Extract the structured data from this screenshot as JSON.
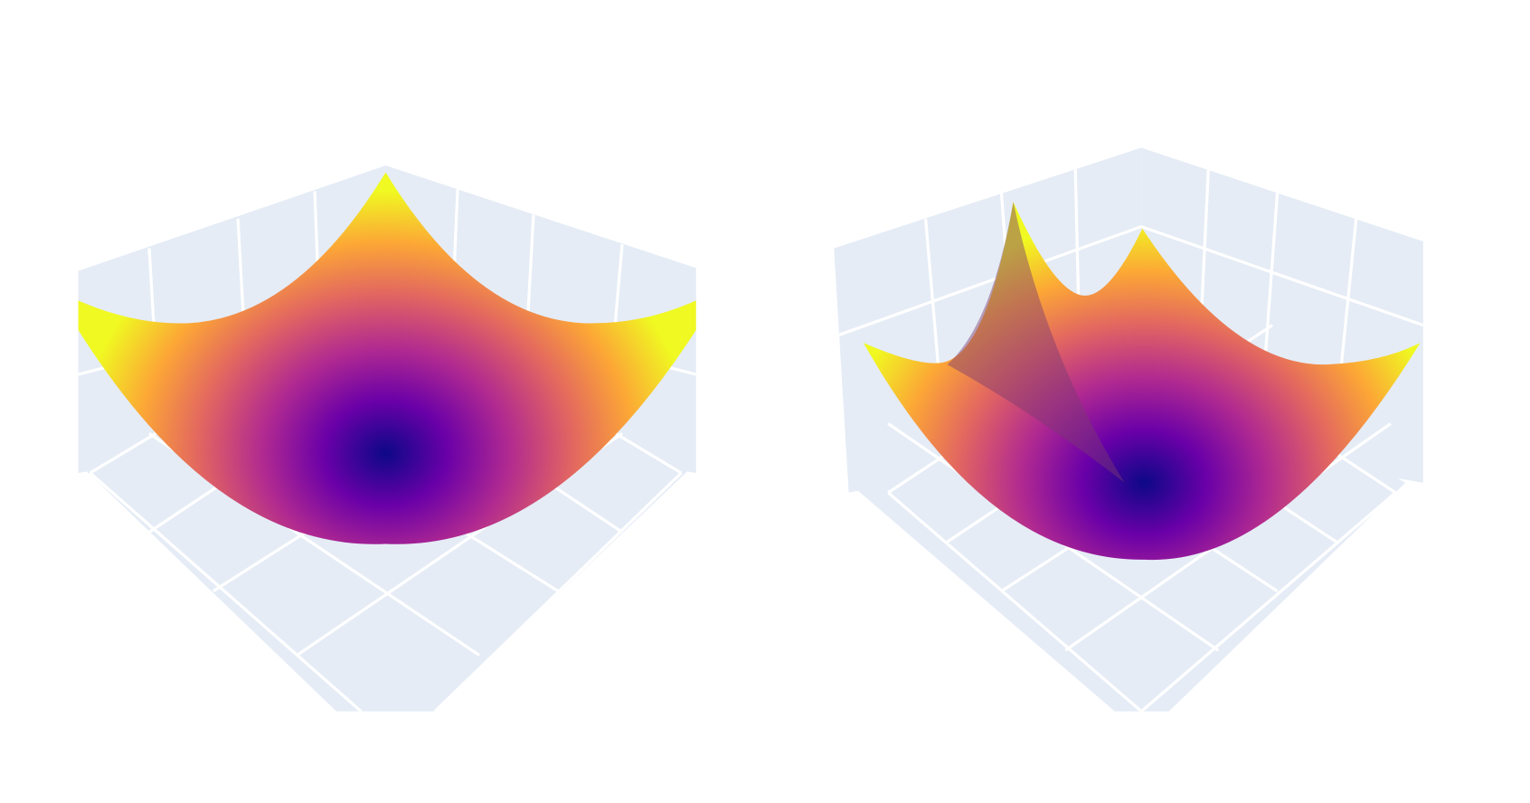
{
  "chart_data": [
    {
      "type": "surface",
      "colorscale": [
        "#0d0887",
        "#6a00a8",
        "#b12a90",
        "#e16462",
        "#fca636",
        "#f0f921"
      ]
    },
    {
      "type": "surface",
      "colorscale": [
        "#0d0887",
        "#6a00a8",
        "#b12a90",
        "#e16462",
        "#fca636",
        "#f0f921"
      ]
    }
  ]
}
